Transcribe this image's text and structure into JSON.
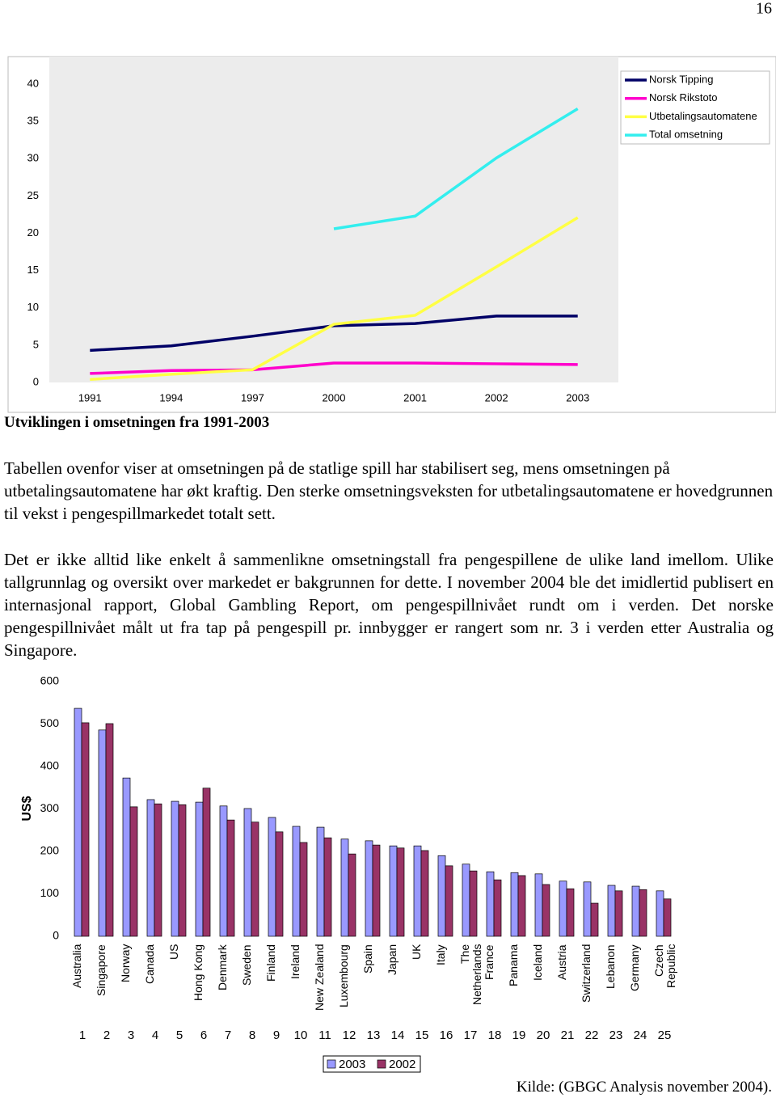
{
  "page_number": "16",
  "chart_data": [
    {
      "type": "line",
      "categories": [
        "1991",
        "1994",
        "1997",
        "2000",
        "2001",
        "2002",
        "2003"
      ],
      "ylim": [
        0,
        40
      ],
      "yticks": [
        0,
        5,
        10,
        15,
        20,
        25,
        30,
        35,
        40
      ],
      "grid": false,
      "legend": "top-right",
      "series": [
        {
          "name": "Norsk Tipping",
          "color": "#000066",
          "values": [
            4.3,
            4.9,
            6.2,
            7.6,
            7.9,
            8.9,
            8.9
          ]
        },
        {
          "name": "Norsk Rikstoto",
          "color": "#ff00cc",
          "values": [
            1.2,
            1.6,
            1.7,
            2.6,
            2.6,
            2.5,
            2.4
          ]
        },
        {
          "name": "Utbetalingsautomatene",
          "color": "#ffff44",
          "values": [
            0.4,
            1.1,
            1.7,
            7.8,
            9.0,
            15.5,
            22.1
          ]
        },
        {
          "name": "Total omsetning",
          "color": "#33eeee",
          "values": [
            null,
            null,
            null,
            20.6,
            22.3,
            30.1,
            36.7
          ]
        }
      ]
    },
    {
      "type": "bar",
      "y_label": "US$",
      "categories": [
        "Australia",
        "Singapore",
        "Norway",
        "Canada",
        "US",
        "Hong Kong",
        "Denmark",
        "Sweden",
        "Finland",
        "Ireland",
        "New Zealand",
        "Luxembourg",
        "Spain",
        "Japan",
        "UK",
        "Italy",
        "The Netherlands",
        "France",
        "Panama",
        "Iceland",
        "Austria",
        "Switzerland",
        "Lebanon",
        "Germany",
        "Czech Republic"
      ],
      "ranks": [
        1,
        2,
        3,
        4,
        5,
        6,
        7,
        8,
        9,
        10,
        11,
        12,
        13,
        14,
        15,
        16,
        17,
        18,
        19,
        20,
        21,
        22,
        23,
        24,
        25
      ],
      "ylim": [
        0,
        600
      ],
      "yticks": [
        0,
        100,
        200,
        300,
        400,
        500,
        600
      ],
      "grid": false,
      "legend": "bottom",
      "series": [
        {
          "name": "2003",
          "color": "#9999ff",
          "values": [
            537,
            486,
            373,
            322,
            318,
            316,
            307,
            301,
            280,
            259,
            257,
            229,
            225,
            213,
            213,
            190,
            170,
            152,
            150,
            147,
            130,
            128,
            120,
            118,
            107
          ]
        },
        {
          "name": "2002",
          "color": "#993366",
          "values": [
            503,
            501,
            305,
            312,
            310,
            349,
            274,
            269,
            246,
            221,
            232,
            194,
            215,
            208,
            202,
            166,
            154,
            133,
            143,
            122,
            112,
            78,
            107,
            110,
            88
          ]
        }
      ]
    }
  ],
  "caption": "Utviklingen i omsetningen fra 1991-2003",
  "paragraphs": [
    "Tabellen ovenfor viser at omsetningen på de statlige spill har stabilisert seg, mens omsetningen på utbetalingsautomatene har økt kraftig. Den sterke omsetningsveksten for utbetalingsautomatene er hovedgrunnen til vekst i pengespillmarkedet totalt sett.",
    "Det er ikke alltid like enkelt å sammenlikne omsetningstall fra pengespillene de ulike land imellom. Ulike tallgrunnlag og oversikt over markedet er bakgrunnen for dette. I november 2004 ble det imidlertid publisert en internasjonal rapport, Global Gambling Report, om pengespillnivået rundt om i verden. Det norske pengespillnivået målt ut fra tap på pengespill pr. innbygger er rangert som nr. 3 i verden etter Australia og Singapore."
  ],
  "source": "Kilde: (GBGC Analysis november 2004)."
}
